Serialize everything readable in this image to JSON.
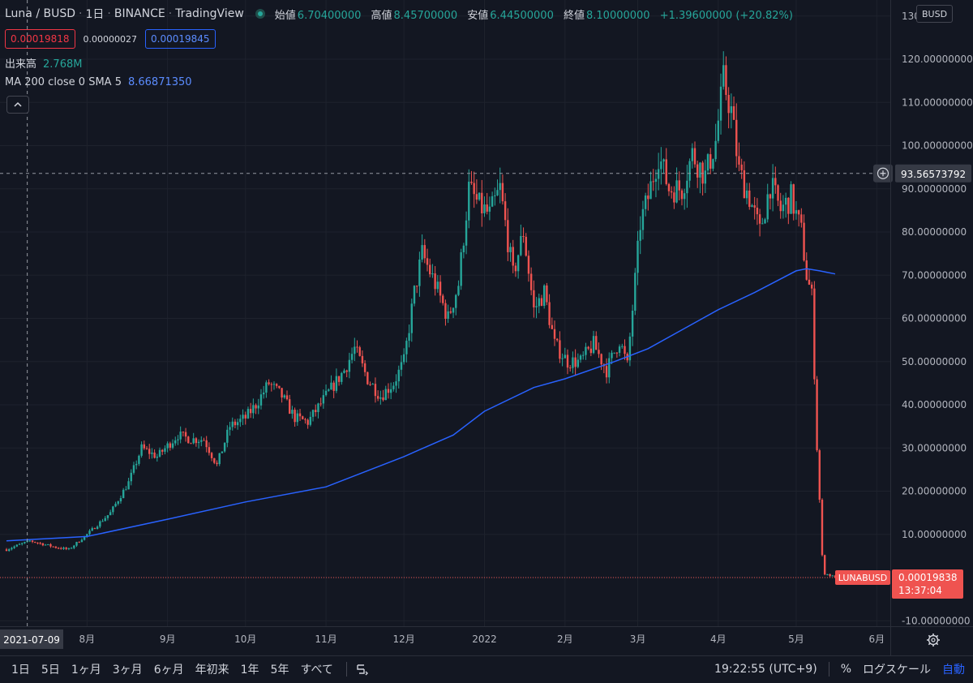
{
  "header": {
    "symbol": "Luna / BUSD",
    "interval": "1日",
    "exchange": "BINANCE",
    "platform": "TradingView",
    "ohlc": [
      {
        "k": "始値",
        "v": "6.70400000"
      },
      {
        "k": "高値",
        "v": "8.45700000"
      },
      {
        "k": "安値",
        "v": "6.44500000"
      },
      {
        "k": "終値",
        "v": "8.10000000"
      },
      {
        "k": "",
        "v": "+1.39600000 (+20.82%)"
      }
    ]
  },
  "price_boxes": {
    "sell": "0.00019818",
    "spread": "0.00000027",
    "buy": "0.00019845"
  },
  "indicators": {
    "volume_label": "出来高",
    "volume_value": "2.768M",
    "ma_label": "MA 200 close 0 SMA 5",
    "ma_value": "8.66871350"
  },
  "currency_button": "BUSD",
  "crosshair": {
    "date_label": "2021-07-09",
    "price_label": "93.56573792"
  },
  "last_price": {
    "symbol_tag": "LUNABUSD",
    "price": "0.00019838",
    "countdown": "13:37:04"
  },
  "bottom_bar": {
    "timeframes": [
      "1日",
      "5日",
      "1ヶ月",
      "3ヶ月",
      "6ヶ月",
      "年初来",
      "1年",
      "5年",
      "すべて"
    ],
    "time": "19:22:55 (UTC+9)",
    "percent": "%",
    "log_scale": "ログスケール",
    "auto": "自動"
  },
  "colors": {
    "up": "#26a69a",
    "down": "#ef5350",
    "ma": "#2962ff",
    "background": "#131722",
    "grid": "#1e222d"
  },
  "icons": {
    "collapse": "chevron-up-icon",
    "settings": "gear-icon",
    "compare": "compare-icon",
    "add": "plus-circle-icon"
  },
  "chart_data": {
    "type": "candlestick",
    "title": "Luna / BUSD",
    "interval": "1D",
    "ylim": [
      -12,
      130
    ],
    "y_ticks": [
      -10,
      0,
      10,
      20,
      30,
      40,
      50,
      60,
      70,
      80,
      90,
      100,
      110,
      120,
      130
    ],
    "y_tick_labels": [
      "-10.00000000",
      "",
      "10.00000000",
      "20.00000000",
      "30.00000000",
      "40.00000000",
      "50.00000000",
      "60.00000000",
      "70.00000000",
      "80.00000000",
      "90.00000000",
      "100.00000000",
      "110.00000000",
      "120.00000000",
      "130"
    ],
    "x_tick_labels": [
      "8月",
      "9月",
      "10月",
      "11月",
      "12月",
      "2022",
      "2月",
      "3月",
      "4月",
      "5月",
      "6月"
    ],
    "x_tick_dates": [
      "2021-08-01",
      "2021-09-01",
      "2021-10-01",
      "2021-11-01",
      "2021-12-01",
      "2022-01-01",
      "2022-02-01",
      "2022-03-01",
      "2022-04-01",
      "2022-05-01",
      "2022-06-01"
    ],
    "close_series": {
      "name": "LUNABUSD",
      "dates": [
        "2021-07-01",
        "2021-07-10",
        "2021-07-20",
        "2021-07-25",
        "2021-08-01",
        "2021-08-10",
        "2021-08-17",
        "2021-08-22",
        "2021-08-28",
        "2021-09-05",
        "2021-09-10",
        "2021-09-15",
        "2021-09-20",
        "2021-09-25",
        "2021-10-01",
        "2021-10-05",
        "2021-10-10",
        "2021-10-15",
        "2021-10-20",
        "2021-10-25",
        "2021-11-01",
        "2021-11-08",
        "2021-11-12",
        "2021-11-17",
        "2021-11-22",
        "2021-11-27",
        "2021-12-01",
        "2021-12-05",
        "2021-12-08",
        "2021-12-13",
        "2021-12-18",
        "2021-12-22",
        "2021-12-26",
        "2021-12-30",
        "2022-01-03",
        "2022-01-07",
        "2022-01-12",
        "2022-01-16",
        "2022-01-20",
        "2022-01-24",
        "2022-01-28",
        "2022-02-02",
        "2022-02-07",
        "2022-02-12",
        "2022-02-17",
        "2022-02-22",
        "2022-02-25",
        "2022-03-02",
        "2022-03-05",
        "2022-03-09",
        "2022-03-13",
        "2022-03-18",
        "2022-03-22",
        "2022-03-27",
        "2022-03-31",
        "2022-04-03",
        "2022-04-06",
        "2022-04-09",
        "2022-04-13",
        "2022-04-17",
        "2022-04-21",
        "2022-04-25",
        "2022-04-29",
        "2022-05-03",
        "2022-05-05",
        "2022-05-07",
        "2022-05-09",
        "2022-05-10",
        "2022-05-11",
        "2022-05-12",
        "2022-05-14",
        "2022-05-16"
      ],
      "values": [
        6.5,
        8.5,
        7,
        6.5,
        10,
        15,
        22,
        30,
        28,
        33,
        32,
        32,
        26,
        35,
        37,
        40,
        45,
        42,
        37,
        36,
        42,
        48,
        53,
        46,
        42,
        45,
        50,
        66,
        75,
        68,
        60,
        68,
        90,
        86,
        84,
        90,
        70,
        80,
        62,
        66,
        54,
        50,
        50,
        54,
        48,
        55,
        49,
        82,
        88,
        98,
        90,
        90,
        98,
        93,
        101,
        115,
        108,
        94,
        88,
        80,
        91,
        85,
        88,
        80,
        70,
        65,
        30,
        18,
        5,
        1,
        0.5,
        0.0002
      ]
    },
    "ma_series": {
      "name": "MA 200",
      "dates": [
        "2021-07-01",
        "2021-08-01",
        "2021-09-01",
        "2021-10-01",
        "2021-11-01",
        "2021-12-01",
        "2021-12-20",
        "2022-01-01",
        "2022-01-20",
        "2022-02-01",
        "2022-02-20",
        "2022-03-05",
        "2022-03-20",
        "2022-04-01",
        "2022-04-15",
        "2022-05-01",
        "2022-05-05",
        "2022-05-10",
        "2022-05-16"
      ],
      "values": [
        8.5,
        9.5,
        13.5,
        17.5,
        21,
        28,
        33,
        38.5,
        44,
        46,
        50,
        53,
        58,
        62,
        66,
        71,
        71.5,
        71,
        70.3
      ]
    },
    "last_value": 0.00019838,
    "crosshair_value": 93.56573792
  }
}
